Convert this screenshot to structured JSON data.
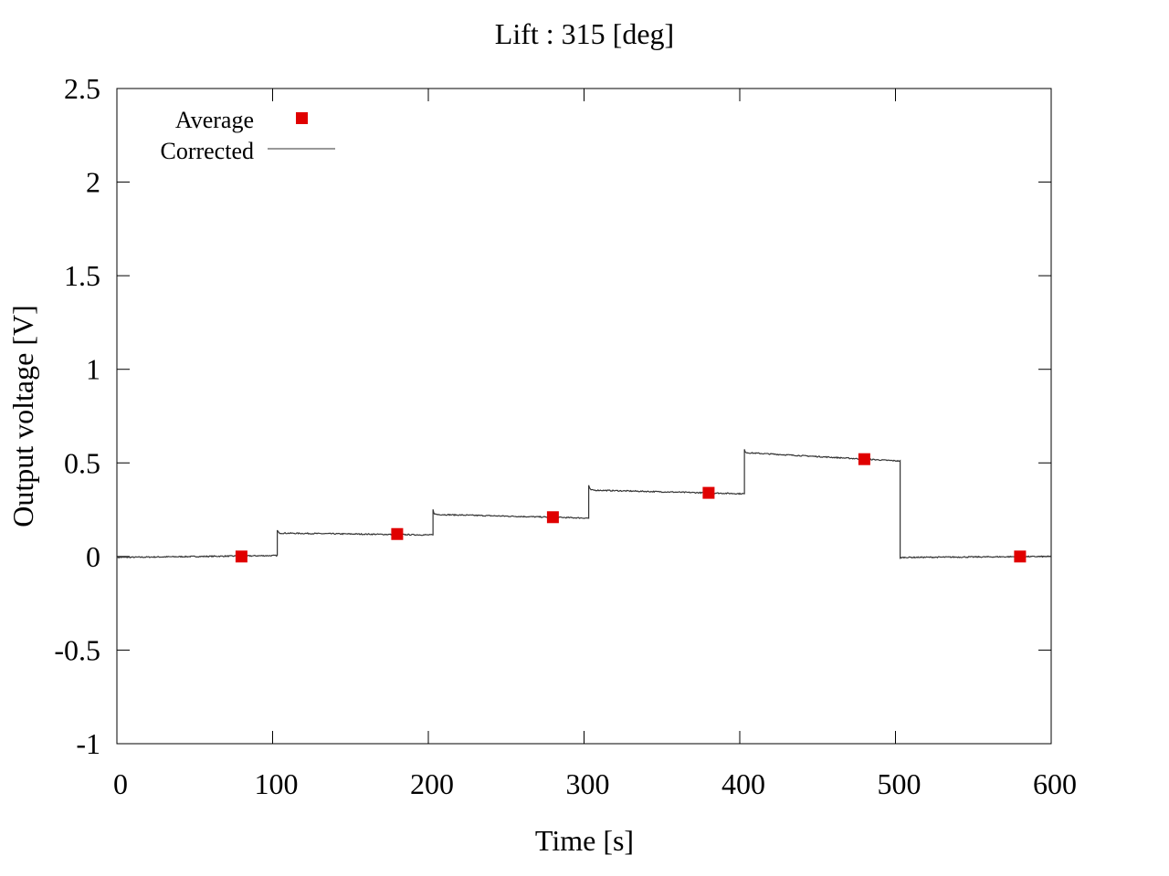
{
  "chart_data": {
    "type": "line",
    "title": "Lift : 315 [deg]",
    "xlabel": "Time [s]",
    "ylabel": "Output voltage [V]",
    "xlim": [
      0,
      600
    ],
    "ylim": [
      -1,
      2.5
    ],
    "xticks": [
      0,
      100,
      200,
      300,
      400,
      500,
      600
    ],
    "yticks": [
      -1,
      -0.5,
      0,
      0.5,
      1,
      1.5,
      2,
      2.5
    ],
    "xtick_labels": [
      "0",
      "100",
      "200",
      "300",
      "400",
      "500",
      "600"
    ],
    "ytick_labels": [
      "-1",
      "-0.5",
      "0",
      "0.5",
      "1",
      "1.5",
      "2",
      "2.5"
    ],
    "grid": false,
    "legend_position": "top-left",
    "series": [
      {
        "name": "Average",
        "kind": "markers",
        "color": "#e00000",
        "marker": "square",
        "x": [
          80,
          180,
          280,
          380,
          480,
          580
        ],
        "y": [
          0.0,
          0.12,
          0.21,
          0.34,
          0.52,
          0.0
        ]
      },
      {
        "name": "Corrected",
        "kind": "line",
        "color": "#333333",
        "segments": [
          {
            "x0": 0,
            "x1": 103,
            "y_start": -0.005,
            "y_end": 0.005,
            "overshoot": 0.0
          },
          {
            "x0": 103,
            "x1": 203,
            "y_start": 0.125,
            "y_end": 0.115,
            "overshoot": 0.14
          },
          {
            "x0": 203,
            "x1": 303,
            "y_start": 0.225,
            "y_end": 0.205,
            "overshoot": 0.25
          },
          {
            "x0": 303,
            "x1": 403,
            "y_start": 0.355,
            "y_end": 0.335,
            "overshoot": 0.38
          },
          {
            "x0": 403,
            "x1": 503,
            "y_start": 0.555,
            "y_end": 0.51,
            "overshoot": 0.57
          },
          {
            "x0": 503,
            "x1": 600,
            "y_start": -0.005,
            "y_end": 0.0,
            "overshoot": -0.01
          }
        ]
      }
    ]
  }
}
